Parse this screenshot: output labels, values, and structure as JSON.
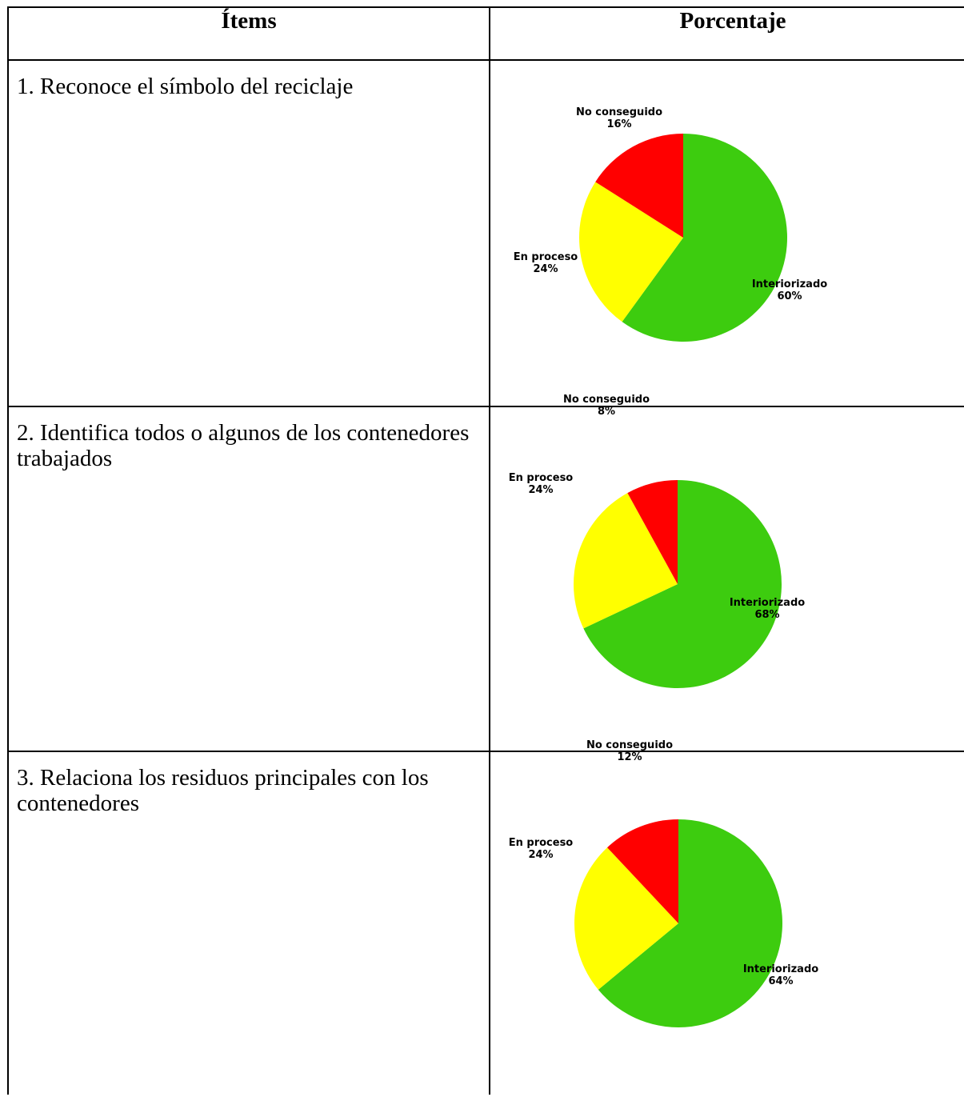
{
  "table": {
    "headers": {
      "items": "Ítems",
      "percentage": "Porcentaje"
    }
  },
  "items": [
    {
      "text": "1. Reconoce el símbolo del reciclaje"
    },
    {
      "text": "2. Identifica todos o algunos de los contenedores trabajados"
    },
    {
      "text": "3. Relaciona los residuos principales con los contenedores"
    }
  ],
  "colors": {
    "interiorizado": "#3dcc0f",
    "en_proceso": "#ffff00",
    "no_conseguido": "#ff0000"
  },
  "chart_data": [
    {
      "type": "pie",
      "title": "",
      "slices": [
        {
          "label": "Interiorizado",
          "value": 60,
          "display": "60%",
          "color": "#3dcc0f"
        },
        {
          "label": "En proceso",
          "value": 24,
          "display": "24%",
          "color": "#ffff00"
        },
        {
          "label": "No conseguido",
          "value": 16,
          "display": "16%",
          "color": "#ff0000"
        }
      ]
    },
    {
      "type": "pie",
      "title": "",
      "slices": [
        {
          "label": "Interiorizado",
          "value": 68,
          "display": "68%",
          "color": "#3dcc0f"
        },
        {
          "label": "En proceso",
          "value": 24,
          "display": "24%",
          "color": "#ffff00"
        },
        {
          "label": "No conseguido",
          "value": 8,
          "display": "8%",
          "color": "#ff0000"
        }
      ]
    },
    {
      "type": "pie",
      "title": "",
      "slices": [
        {
          "label": "Interiorizado",
          "value": 64,
          "display": "64%",
          "color": "#3dcc0f"
        },
        {
          "label": "En proceso",
          "value": 24,
          "display": "24%",
          "color": "#ffff00"
        },
        {
          "label": "No conseguido",
          "value": 12,
          "display": "12%",
          "color": "#ff0000"
        }
      ]
    }
  ]
}
